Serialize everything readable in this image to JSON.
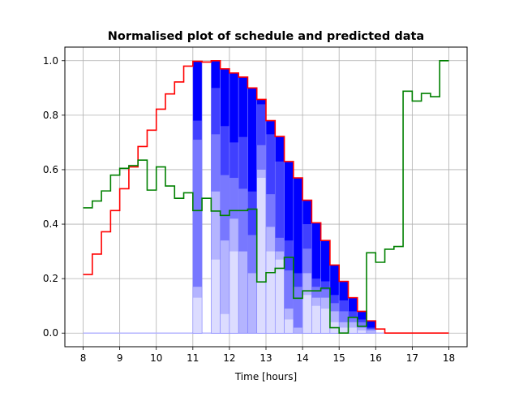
{
  "chart_data": {
    "type": "line",
    "title": "Normalised plot of schedule and predicted data",
    "xlabel": "Time [hours]",
    "ylabel": "",
    "xlim": [
      7.5,
      18.5
    ],
    "ylim": [
      -0.05,
      1.05
    ],
    "xticks": [
      8,
      9,
      10,
      11,
      12,
      13,
      14,
      15,
      16,
      17,
      18
    ],
    "yticks": [
      0.0,
      0.2,
      0.4,
      0.6,
      0.8,
      1.0
    ],
    "ytick_labels": [
      "0.0",
      "0.2",
      "0.4",
      "0.6",
      "0.8",
      "1.0"
    ],
    "grid": true,
    "step_width": 0.25,
    "series": [
      {
        "color": "#ff0000",
        "style": "step",
        "x": [
          8.0,
          8.25,
          8.5,
          8.75,
          9.0,
          9.25,
          9.5,
          9.75,
          10.0,
          10.25,
          10.5,
          10.75,
          11.0,
          11.25,
          11.5,
          11.75,
          12.0,
          12.25,
          12.5,
          12.75,
          13.0,
          13.25,
          13.5,
          13.75,
          14.0,
          14.25,
          14.5,
          14.75,
          15.0,
          15.25,
          15.5,
          15.75,
          16.0,
          16.25,
          16.5,
          16.75,
          17.0,
          17.25,
          17.5,
          17.75
        ],
        "y": [
          0.215,
          0.29,
          0.372,
          0.45,
          0.53,
          0.61,
          0.685,
          0.745,
          0.822,
          0.878,
          0.922,
          0.98,
          0.998,
          0.995,
          1.0,
          0.97,
          0.955,
          0.94,
          0.9,
          0.858,
          0.78,
          0.722,
          0.63,
          0.57,
          0.488,
          0.405,
          0.34,
          0.25,
          0.19,
          0.13,
          0.08,
          0.045,
          0.015,
          0.0,
          0.0,
          0.0,
          0.0,
          0.0,
          0.0,
          0.0
        ]
      },
      {
        "color": "#008000",
        "style": "step",
        "x": [
          8.0,
          8.25,
          8.5,
          8.75,
          9.0,
          9.25,
          9.5,
          9.75,
          10.0,
          10.25,
          10.5,
          10.75,
          11.0,
          11.25,
          11.5,
          11.75,
          12.0,
          12.25,
          12.5,
          12.75,
          13.0,
          13.25,
          13.5,
          13.75,
          14.0,
          14.25,
          14.5,
          14.75,
          15.0,
          15.25,
          15.5,
          15.75,
          16.0,
          16.25,
          16.5,
          16.75,
          17.0,
          17.25,
          17.5,
          17.75
        ],
        "y": [
          0.46,
          0.485,
          0.522,
          0.58,
          0.605,
          0.615,
          0.635,
          0.525,
          0.61,
          0.54,
          0.495,
          0.515,
          0.45,
          0.495,
          0.448,
          0.432,
          0.45,
          0.45,
          0.455,
          0.188,
          0.222,
          0.238,
          0.278,
          0.128,
          0.155,
          0.155,
          0.165,
          0.02,
          0.0,
          0.058,
          0.025,
          0.295,
          0.26,
          0.308,
          0.318,
          0.888,
          0.852,
          0.88,
          0.868,
          1.0
        ]
      }
    ],
    "schedule_bars": [
      {
        "x": 11.0,
        "width": 0.25,
        "levels": [
          0.13,
          0.17,
          0.71,
          0.78,
          0.998
        ]
      },
      {
        "x": 11.25,
        "width": 0.25,
        "levels": [
          0.0
        ]
      },
      {
        "x": 11.5,
        "width": 0.25,
        "levels": [
          0.27,
          0.52,
          0.73,
          0.9,
          1.0
        ]
      },
      {
        "x": 11.75,
        "width": 0.25,
        "levels": [
          0.07,
          0.34,
          0.58,
          0.76,
          0.97
        ]
      },
      {
        "x": 12.0,
        "width": 0.25,
        "levels": [
          0.3,
          0.42,
          0.57,
          0.7,
          0.955
        ]
      },
      {
        "x": 12.25,
        "width": 0.25,
        "levels": [
          0.0,
          0.3,
          0.53,
          0.72,
          0.94
        ]
      },
      {
        "x": 12.5,
        "width": 0.25,
        "levels": [
          0.0,
          0.22,
          0.36,
          0.52,
          0.9
        ]
      },
      {
        "x": 12.75,
        "width": 0.25,
        "levels": [
          0.57,
          0.6,
          0.69,
          0.84,
          0.858
        ]
      },
      {
        "x": 13.0,
        "width": 0.25,
        "levels": [
          0.3,
          0.39,
          0.51,
          0.73,
          0.78
        ]
      },
      {
        "x": 13.25,
        "width": 0.25,
        "levels": [
          0.27,
          0.3,
          0.35,
          0.63,
          0.722
        ]
      },
      {
        "x": 13.5,
        "width": 0.25,
        "levels": [
          0.05,
          0.09,
          0.23,
          0.34,
          0.63
        ]
      },
      {
        "x": 13.75,
        "width": 0.25,
        "levels": [
          0.0,
          0.02,
          0.17,
          0.22,
          0.57
        ]
      },
      {
        "x": 14.0,
        "width": 0.25,
        "levels": [
          0.14,
          0.22,
          0.31,
          0.4,
          0.488
        ]
      },
      {
        "x": 14.25,
        "width": 0.25,
        "levels": [
          0.1,
          0.13,
          0.17,
          0.2,
          0.405
        ]
      },
      {
        "x": 14.5,
        "width": 0.25,
        "levels": [
          0.09,
          0.13,
          0.16,
          0.19,
          0.34
        ]
      },
      {
        "x": 14.75,
        "width": 0.25,
        "levels": [
          0.04,
          0.08,
          0.11,
          0.14,
          0.25
        ]
      },
      {
        "x": 15.0,
        "width": 0.25,
        "levels": [
          0.02,
          0.04,
          0.08,
          0.12,
          0.19
        ]
      },
      {
        "x": 15.25,
        "width": 0.25,
        "levels": [
          0.02,
          0.04,
          0.06,
          0.08,
          0.13
        ]
      },
      {
        "x": 15.5,
        "width": 0.25,
        "levels": [
          0.01,
          0.02,
          0.04,
          0.05,
          0.08
        ]
      },
      {
        "x": 15.75,
        "width": 0.25,
        "levels": [
          0.0,
          0.01,
          0.015,
          0.02,
          0.045
        ]
      }
    ],
    "bar_shade_colors": [
      "#dcdcff",
      "#b4b4ff",
      "#7878ff",
      "#4040ff",
      "#0000ff"
    ],
    "baseline": {
      "x": [
        8.0,
        18.0
      ],
      "y": 0.0,
      "color": "#b4b4ff"
    }
  }
}
